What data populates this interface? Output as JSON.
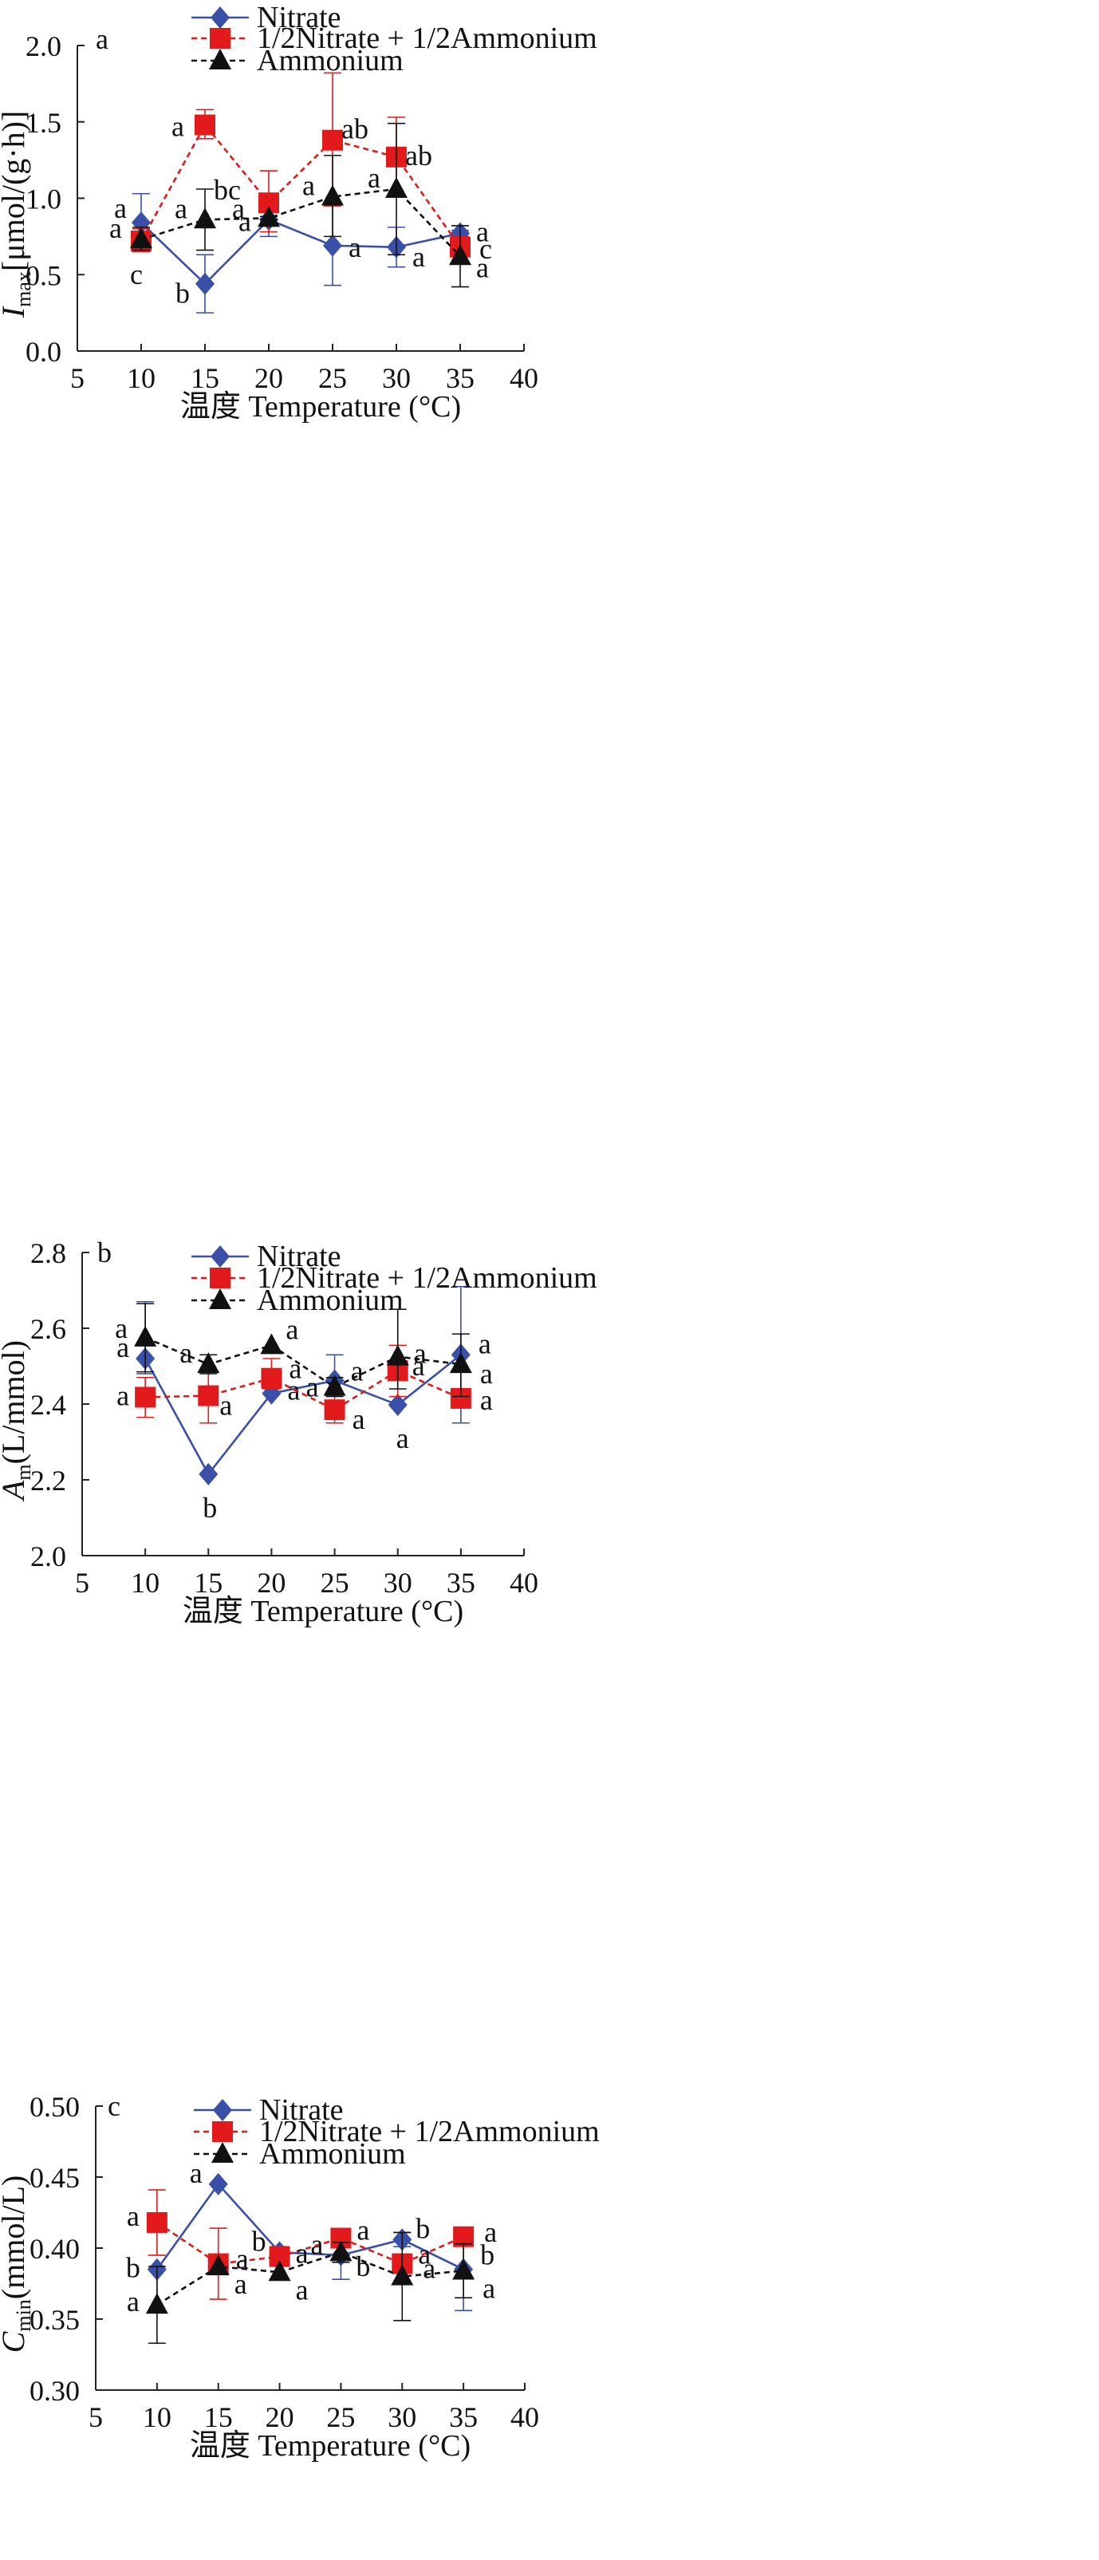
{
  "colors": {
    "nitrate": "#3A4FA8",
    "mixed": "#E31A1C",
    "ammonium": "#111111",
    "axis": "#222222"
  },
  "chart_data": [
    {
      "type": "line",
      "panel_label": "a",
      "ylabel_main": "I",
      "ylabel_sub": "max",
      "ylabel_rest": "[μmol/(g·h)]",
      "xlabel": "温度 Temperature (°C)",
      "xlim": [
        5,
        40
      ],
      "ylim": [
        0.0,
        2.0
      ],
      "xticks": [
        5,
        10,
        15,
        20,
        25,
        30,
        35,
        40
      ],
      "xtick_labels": [
        "5",
        "10",
        "15",
        "20",
        "25",
        "30",
        "35",
        "40"
      ],
      "yticks": [
        0.0,
        0.5,
        1.0,
        1.5,
        2.0
      ],
      "ytick_labels": [
        "0.0",
        "0.5",
        "1.0",
        "1.5",
        "2.0"
      ],
      "legend_position": "top",
      "x": [
        10,
        15,
        20,
        25,
        30,
        35
      ],
      "series": [
        {
          "name": "Nitrate",
          "marker": "diamond",
          "dash": "solid",
          "color_key": "nitrate",
          "values": [
            0.84,
            0.44,
            0.86,
            0.69,
            0.68,
            0.77
          ],
          "err_low": [
            0.66,
            0.25,
            0.75,
            0.43,
            0.55,
            0.73
          ],
          "err_high": [
            1.03,
            0.63,
            0.86,
            0.96,
            0.81,
            0.79
          ],
          "letters": [
            "a",
            "b",
            "a",
            "a",
            "a",
            "a"
          ]
        },
        {
          "name": "1/2Nitrate + 1/2Ammonium",
          "marker": "square",
          "dash": "dashed",
          "color_key": "mixed",
          "values": [
            0.72,
            1.48,
            0.97,
            1.38,
            1.27,
            0.68
          ],
          "err_low": [
            0.65,
            1.39,
            0.78,
            0.95,
            1.03,
            0.62
          ],
          "err_high": [
            0.8,
            1.58,
            1.18,
            1.82,
            1.53,
            0.75
          ],
          "letters": [
            "c",
            "a",
            "bc",
            "ab",
            "ab",
            "c"
          ]
        },
        {
          "name": "Ammonium",
          "marker": "triangle",
          "dash": "dashed",
          "color_key": "ammonium",
          "values": [
            0.73,
            0.86,
            0.87,
            1.01,
            1.06,
            0.62
          ],
          "err_low": [
            0.66,
            0.66,
            0.86,
            0.75,
            0.63,
            0.42
          ],
          "err_high": [
            0.81,
            1.06,
            0.88,
            1.28,
            1.49,
            0.82
          ],
          "letters": [
            "a",
            "a",
            "a",
            "a",
            "a",
            "a"
          ]
        }
      ]
    },
    {
      "type": "line",
      "panel_label": "b",
      "ylabel_main": "A",
      "ylabel_sub": "m",
      "ylabel_rest": "(L/mmol)",
      "xlabel": "温度 Temperature (°C)",
      "xlim": [
        5,
        40
      ],
      "ylim": [
        2.0,
        2.8
      ],
      "xticks": [
        5,
        10,
        15,
        20,
        25,
        30,
        35,
        40
      ],
      "xtick_labels": [
        "5",
        "10",
        "15",
        "20",
        "25",
        "30",
        "35",
        "40"
      ],
      "yticks": [
        2.0,
        2.2,
        2.4,
        2.6,
        2.8
      ],
      "ytick_labels": [
        "2.0",
        "2.2",
        "2.4",
        "2.6",
        "2.8"
      ],
      "legend_position": "top",
      "x": [
        10,
        15,
        20,
        25,
        30,
        35
      ],
      "series": [
        {
          "name": "Nitrate",
          "marker": "diamond",
          "dash": "solid",
          "color_key": "nitrate",
          "values": [
            2.52,
            2.215,
            2.428,
            2.462,
            2.398,
            2.53
          ],
          "err_low": [
            2.48,
            2.215,
            2.428,
            2.43,
            2.398,
            2.35
          ],
          "err_high": [
            2.67,
            2.215,
            2.428,
            2.53,
            2.398,
            2.71
          ],
          "letters": [
            "a",
            "b",
            "a",
            "a",
            "a",
            "a"
          ]
        },
        {
          "name": "1/2Nitrate + 1/2Ammonium",
          "marker": "square",
          "dash": "dashed",
          "color_key": "mixed",
          "values": [
            2.418,
            2.422,
            2.468,
            2.385,
            2.488,
            2.415
          ],
          "err_low": [
            2.365,
            2.35,
            2.44,
            2.35,
            2.42,
            2.415
          ],
          "err_high": [
            2.47,
            2.49,
            2.52,
            2.42,
            2.555,
            2.415
          ],
          "letters": [
            "a",
            "a",
            "a",
            "a",
            "a",
            "a"
          ]
        },
        {
          "name": "Ammonium",
          "marker": "triangle",
          "dash": "dashed",
          "color_key": "ammonium",
          "values": [
            2.575,
            2.505,
            2.555,
            2.445,
            2.525,
            2.505
          ],
          "err_low": [
            2.485,
            2.48,
            2.555,
            2.42,
            2.44,
            2.42
          ],
          "err_high": [
            2.665,
            2.53,
            2.555,
            2.47,
            2.65,
            2.585
          ],
          "letters": [
            "a",
            "a",
            "a",
            "a",
            "a",
            "a"
          ]
        }
      ]
    },
    {
      "type": "line",
      "panel_label": "c",
      "ylabel_main": "C",
      "ylabel_sub": "min",
      "ylabel_rest": "(mmol/L)",
      "xlabel": "温度 Temperature (°C)",
      "xlim": [
        5,
        40
      ],
      "ylim": [
        0.3,
        0.5
      ],
      "xticks": [
        5,
        10,
        15,
        20,
        25,
        30,
        35,
        40
      ],
      "xtick_labels": [
        "5",
        "10",
        "15",
        "20",
        "25",
        "30",
        "35",
        "40"
      ],
      "yticks": [
        0.3,
        0.35,
        0.4,
        0.45,
        0.5
      ],
      "ytick_labels": [
        "0.30",
        "0.35",
        "0.40",
        "0.45",
        "0.50"
      ],
      "legend_position": "top",
      "x": [
        10,
        15,
        20,
        25,
        30,
        35
      ],
      "series": [
        {
          "name": "Nitrate",
          "marker": "diamond",
          "dash": "solid",
          "color_key": "nitrate",
          "values": [
            0.385,
            0.445,
            0.397,
            0.395,
            0.406,
            0.385
          ],
          "err_low": [
            0.355,
            0.445,
            0.393,
            0.378,
            0.401,
            0.356
          ],
          "err_high": [
            0.385,
            0.445,
            0.401,
            0.412,
            0.411,
            0.414
          ],
          "letters": [
            "b",
            "a",
            "b",
            "b",
            "b",
            "b"
          ]
        },
        {
          "name": "1/2Nitrate + 1/2Ammonium",
          "marker": "square",
          "dash": "dashed",
          "color_key": "mixed",
          "values": [
            0.418,
            0.389,
            0.394,
            0.407,
            0.389,
            0.408
          ],
          "err_low": [
            0.395,
            0.364,
            0.394,
            0.402,
            0.386,
            0.408
          ],
          "err_high": [
            0.441,
            0.414,
            0.394,
            0.412,
            0.392,
            0.408
          ],
          "letters": [
            "a",
            "a",
            "a",
            "a",
            "a",
            "a"
          ]
        },
        {
          "name": "Ammonium",
          "marker": "triangle",
          "dash": "dashed",
          "color_key": "ammonium",
          "values": [
            0.36,
            0.387,
            0.383,
            0.397,
            0.38,
            0.384
          ],
          "err_low": [
            0.333,
            0.387,
            0.383,
            0.39,
            0.349,
            0.365
          ],
          "err_high": [
            0.387,
            0.387,
            0.383,
            0.404,
            0.411,
            0.403
          ],
          "letters": [
            "a",
            "a",
            "a",
            "a",
            "a",
            "a"
          ]
        }
      ]
    }
  ]
}
